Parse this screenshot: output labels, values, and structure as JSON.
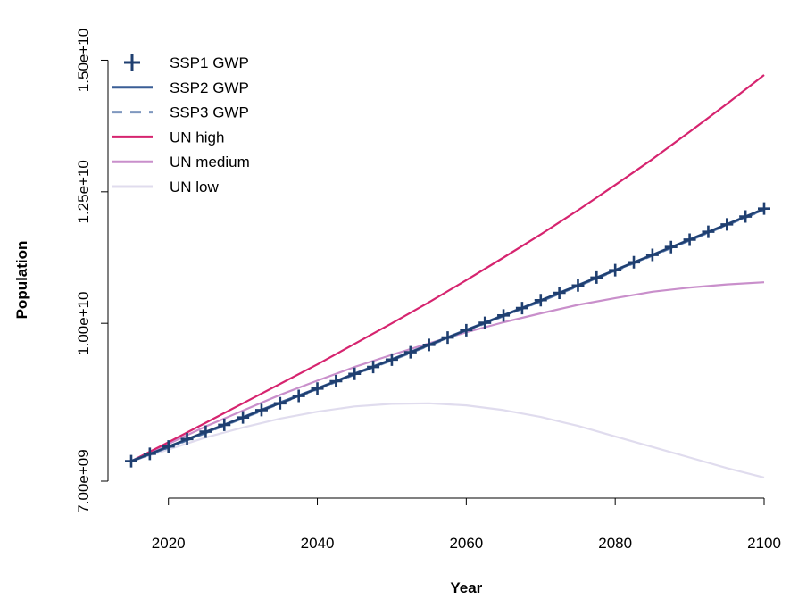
{
  "chart_data": {
    "type": "line",
    "xlabel": "Year",
    "ylabel": "Population",
    "xlim": [
      2015,
      2100
    ],
    "ylim": [
      7000000000,
      15500000000
    ],
    "x_ticks": [
      2020,
      2040,
      2060,
      2080,
      2100
    ],
    "x_tick_labels": [
      "2020",
      "2040",
      "2060",
      "2080",
      "2100"
    ],
    "y_ticks": [
      7000000000,
      10000000000,
      12500000000,
      15000000000
    ],
    "y_tick_labels": [
      "7.00e+09",
      "1.00e+10",
      "1.25e+10",
      "1.50e+10"
    ],
    "grid": false,
    "legend_position": "top-left",
    "x": [
      2015,
      2020,
      2025,
      2030,
      2035,
      2040,
      2045,
      2050,
      2055,
      2060,
      2065,
      2070,
      2075,
      2080,
      2085,
      2090,
      2095,
      2100
    ],
    "series": [
      {
        "name": "SSP1 GWP",
        "color": "#1f3f70",
        "style": "plus-markers",
        "x": [
          2015,
          2017.5,
          2020,
          2022.5,
          2025,
          2027.5,
          2030,
          2032.5,
          2035,
          2037.5,
          2040,
          2042.5,
          2045,
          2047.5,
          2050,
          2052.5,
          2055,
          2057.5,
          2060,
          2062.5,
          2065,
          2067.5,
          2070,
          2072.5,
          2075,
          2077.5,
          2080,
          2082.5,
          2085,
          2087.5,
          2090,
          2092.5,
          2095,
          2097.5,
          2100
        ],
        "values": [
          7380000000,
          7520000000,
          7660000000,
          7800000000,
          7940000000,
          8070000000,
          8210000000,
          8350000000,
          8480000000,
          8620000000,
          8760000000,
          8900000000,
          9040000000,
          9170000000,
          9310000000,
          9450000000,
          9590000000,
          9730000000,
          9870000000,
          10010000000,
          10150000000,
          10290000000,
          10440000000,
          10580000000,
          10720000000,
          10870000000,
          11010000000,
          11160000000,
          11300000000,
          11450000000,
          11590000000,
          11740000000,
          11880000000,
          12030000000,
          12180000000
        ]
      },
      {
        "name": "SSP2 GWP",
        "color": "#3a5e96",
        "style": "solid",
        "values": [
          7380000000,
          7650000000,
          7930000000,
          8210000000,
          8490000000,
          8760000000,
          9040000000,
          9310000000,
          9590000000,
          9870000000,
          10150000000,
          10430000000,
          10720000000,
          11010000000,
          11300000000,
          11590000000,
          11880000000,
          12170000000
        ]
      },
      {
        "name": "SSP3 GWP",
        "color": "#7f98bf",
        "style": "dashed",
        "values": [
          7380000000,
          7640000000,
          7920000000,
          8200000000,
          8480000000,
          8750000000,
          9030000000,
          9300000000,
          9580000000,
          9860000000,
          10140000000,
          10420000000,
          10710000000,
          11000000000,
          11290000000,
          11580000000,
          11870000000,
          12160000000
        ]
      },
      {
        "name": "UN high",
        "color": "#d6246f",
        "style": "solid",
        "values": [
          7380000000,
          7740000000,
          8110000000,
          8480000000,
          8850000000,
          9220000000,
          9610000000,
          10000000000,
          10400000000,
          10820000000,
          11250000000,
          11690000000,
          12150000000,
          12630000000,
          13120000000,
          13640000000,
          14170000000,
          14720000000
        ]
      },
      {
        "name": "UN medium",
        "color": "#c98fcb",
        "style": "solid",
        "values": [
          7380000000,
          7710000000,
          8040000000,
          8340000000,
          8640000000,
          8910000000,
          9170000000,
          9400000000,
          9620000000,
          9830000000,
          10020000000,
          10190000000,
          10350000000,
          10480000000,
          10600000000,
          10680000000,
          10740000000,
          10780000000
        ]
      },
      {
        "name": "UN low",
        "color": "#e0dcee",
        "style": "solid",
        "values": [
          7380000000,
          7600000000,
          7830000000,
          8020000000,
          8190000000,
          8320000000,
          8420000000,
          8470000000,
          8480000000,
          8440000000,
          8350000000,
          8220000000,
          8050000000,
          7850000000,
          7650000000,
          7450000000,
          7250000000,
          7070000000
        ]
      }
    ]
  }
}
